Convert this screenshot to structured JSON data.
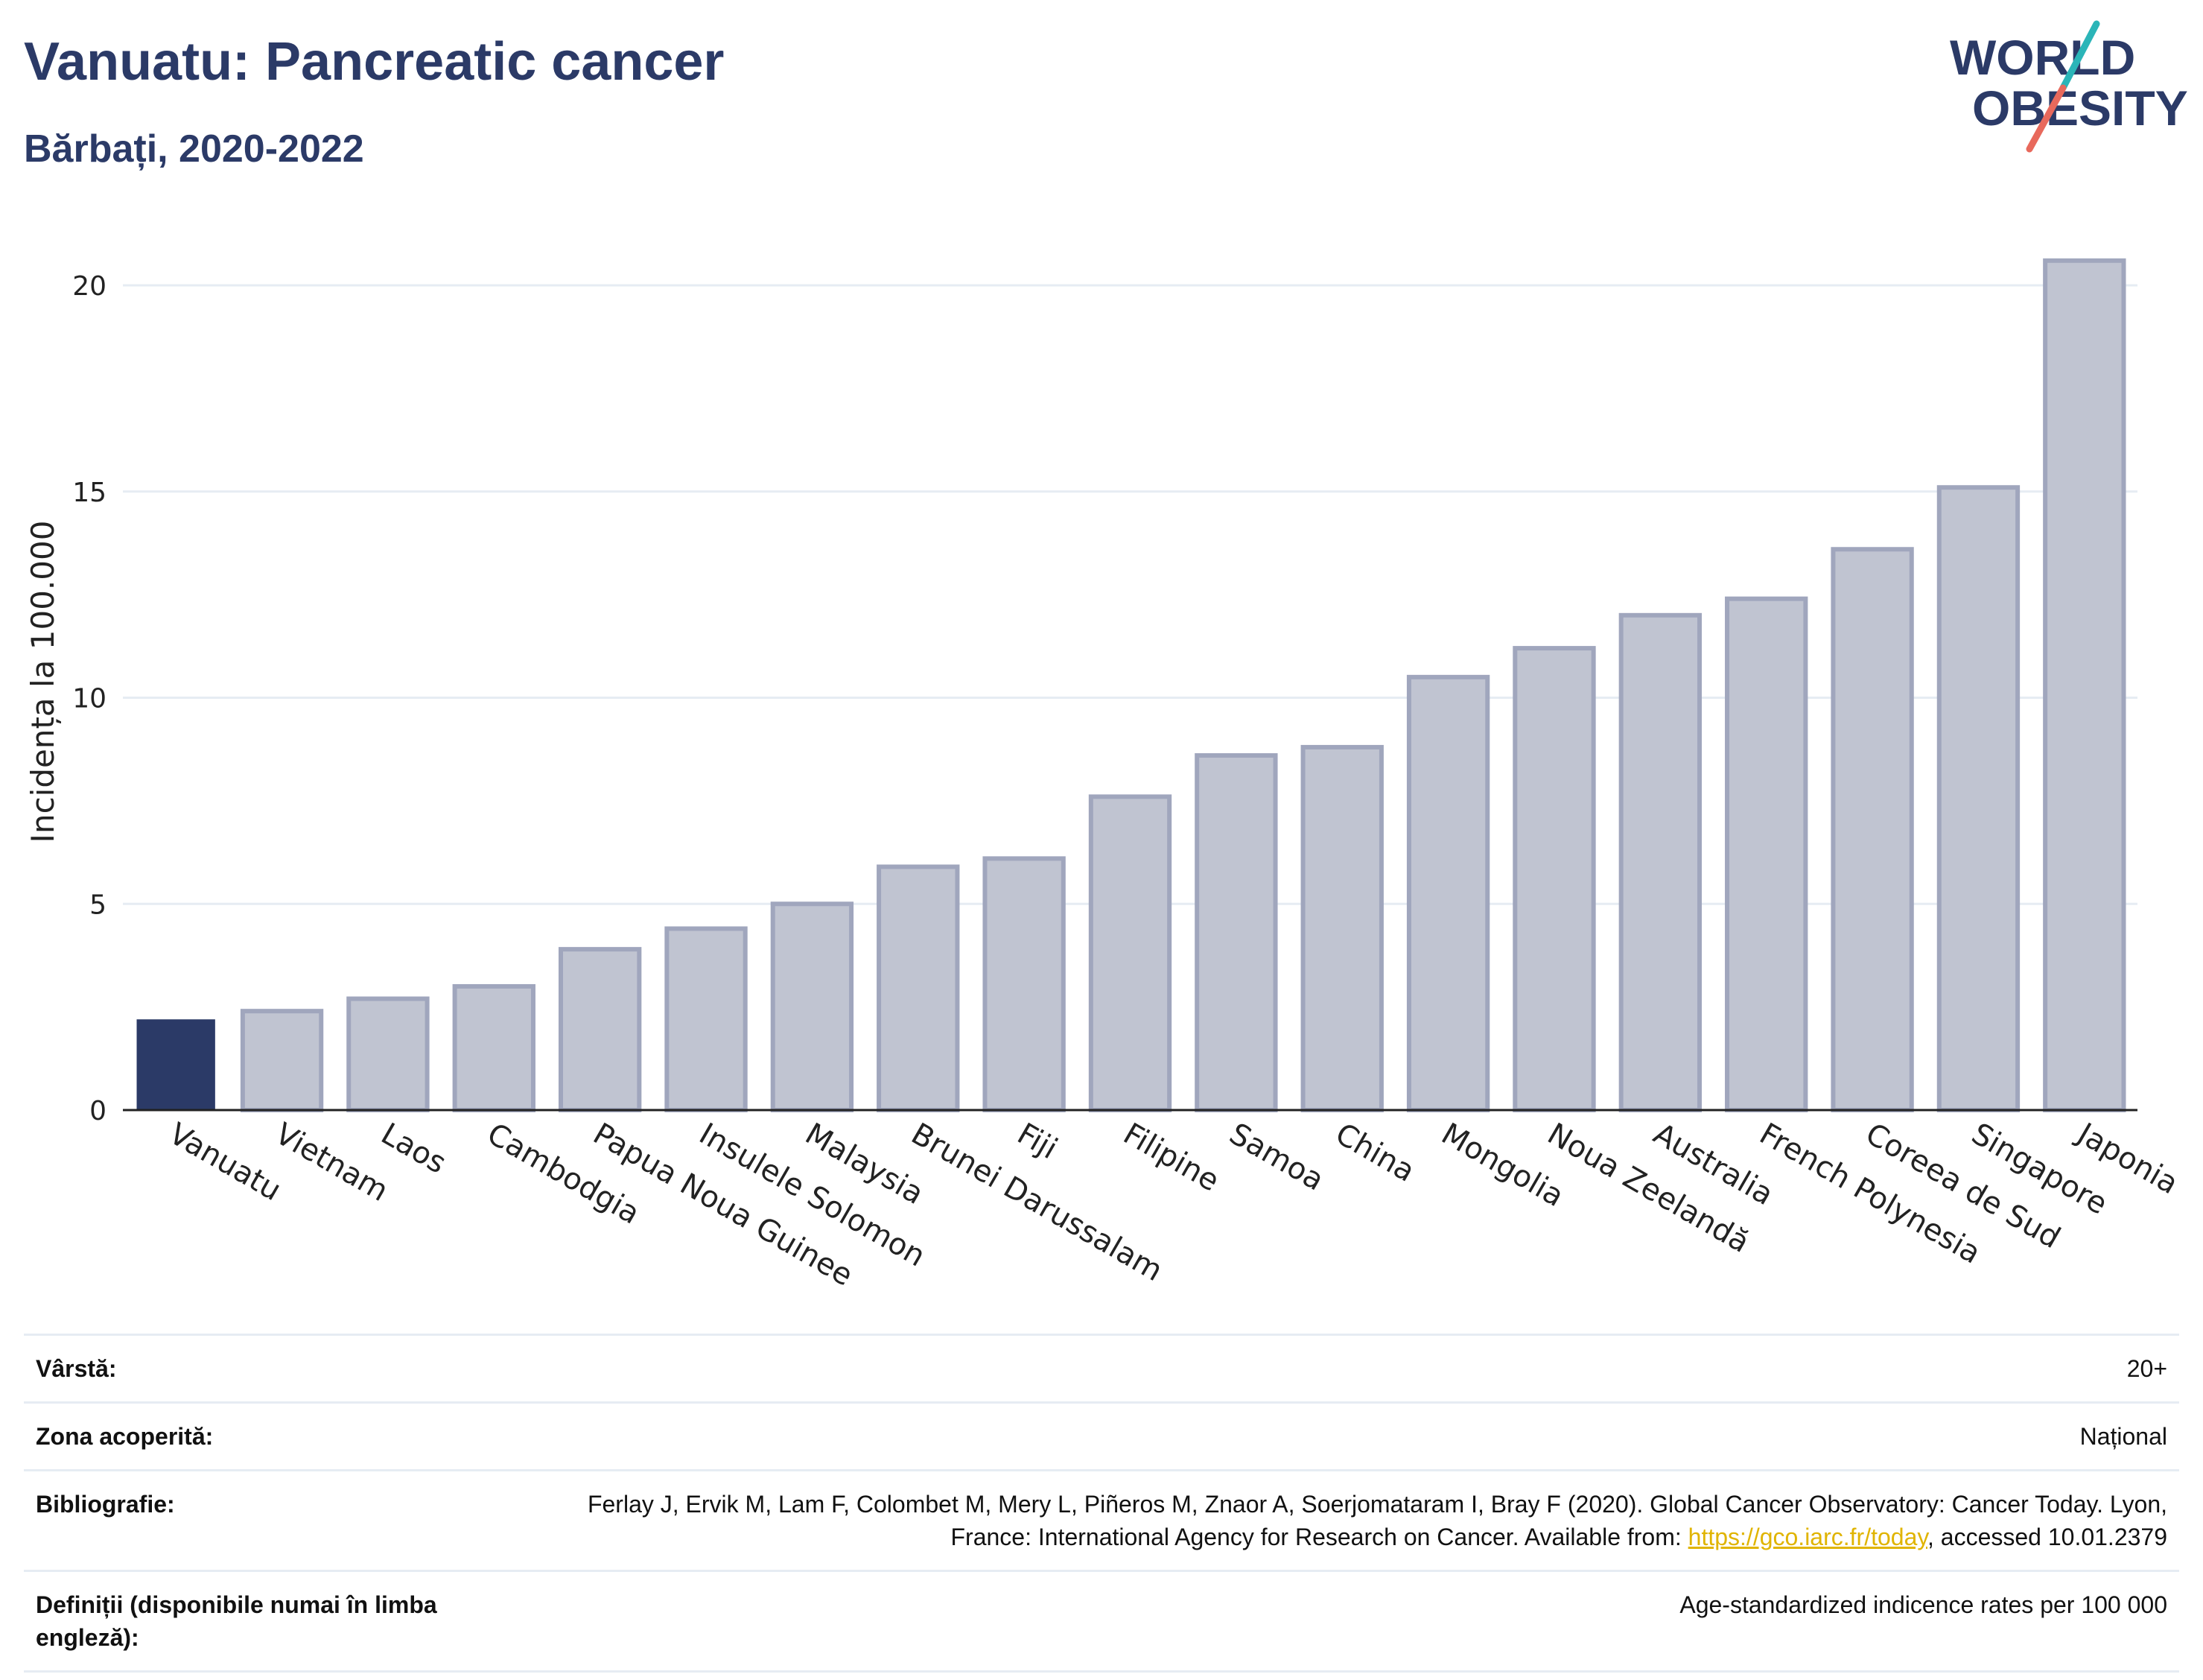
{
  "header": {
    "title": "Vanuatu: Pancreatic cancer",
    "subtitle": "Bărbați, 2020-2022",
    "logo_text": [
      "WORLD",
      "OBESITY"
    ]
  },
  "colors": {
    "title": "#2b3a67",
    "highlight_bar": "#2b3a67",
    "other_bar_fill": "#c0c4d1",
    "other_bar_stroke": "#a0a6bd",
    "grid": "#e6ecf3",
    "logo_teal": "#2bb5b8",
    "logo_red": "#e8695c"
  },
  "chart_data": {
    "type": "bar",
    "categories": [
      "Vanuatu",
      "Vietnam",
      "Laos",
      "Cambodgia",
      "Papua Noua Guinee",
      "Insulele Solomon",
      "Malaysia",
      "Brunei Darussalam",
      "Fiji",
      "Filipine",
      "Samoa",
      "China",
      "Mongolia",
      "Noua Zeelandă",
      "Australia",
      "French Polynesia",
      "Coreea de Sud",
      "Singapore",
      "Japonia"
    ],
    "values": [
      2.2,
      2.4,
      2.7,
      3.0,
      3.9,
      4.4,
      5.0,
      5.9,
      6.1,
      7.6,
      8.6,
      8.8,
      10.5,
      11.2,
      12.0,
      12.4,
      13.6,
      15.1,
      20.6
    ],
    "highlight": "Vanuatu",
    "ylabel": "Incidența la 100.000",
    "xlabel": "",
    "ylim": [
      0,
      21.5
    ],
    "yticks": [
      0,
      5,
      10,
      15,
      20
    ],
    "grid": true,
    "legend": "none"
  },
  "info": [
    {
      "label": "Vârstă:",
      "value": "20+"
    },
    {
      "label": "Zona acoperită:",
      "value": "Național"
    },
    {
      "label": "Bibliografie:",
      "value_before": "Ferlay J, Ervik M, Lam F, Colombet M, Mery L, Piñeros M, Znaor A, Soerjomataram I, Bray F (2020). Global Cancer Observatory: Cancer Today. Lyon, France: International Agency for Research on Cancer. Available from: ",
      "link": "https://gco.iarc.fr/today",
      "value_after": ", accessed 10.01.2379"
    },
    {
      "label": "Definiții (disponibile numai în limba engleză):",
      "value": "Age-standardized indicence rates per 100 000"
    }
  ]
}
